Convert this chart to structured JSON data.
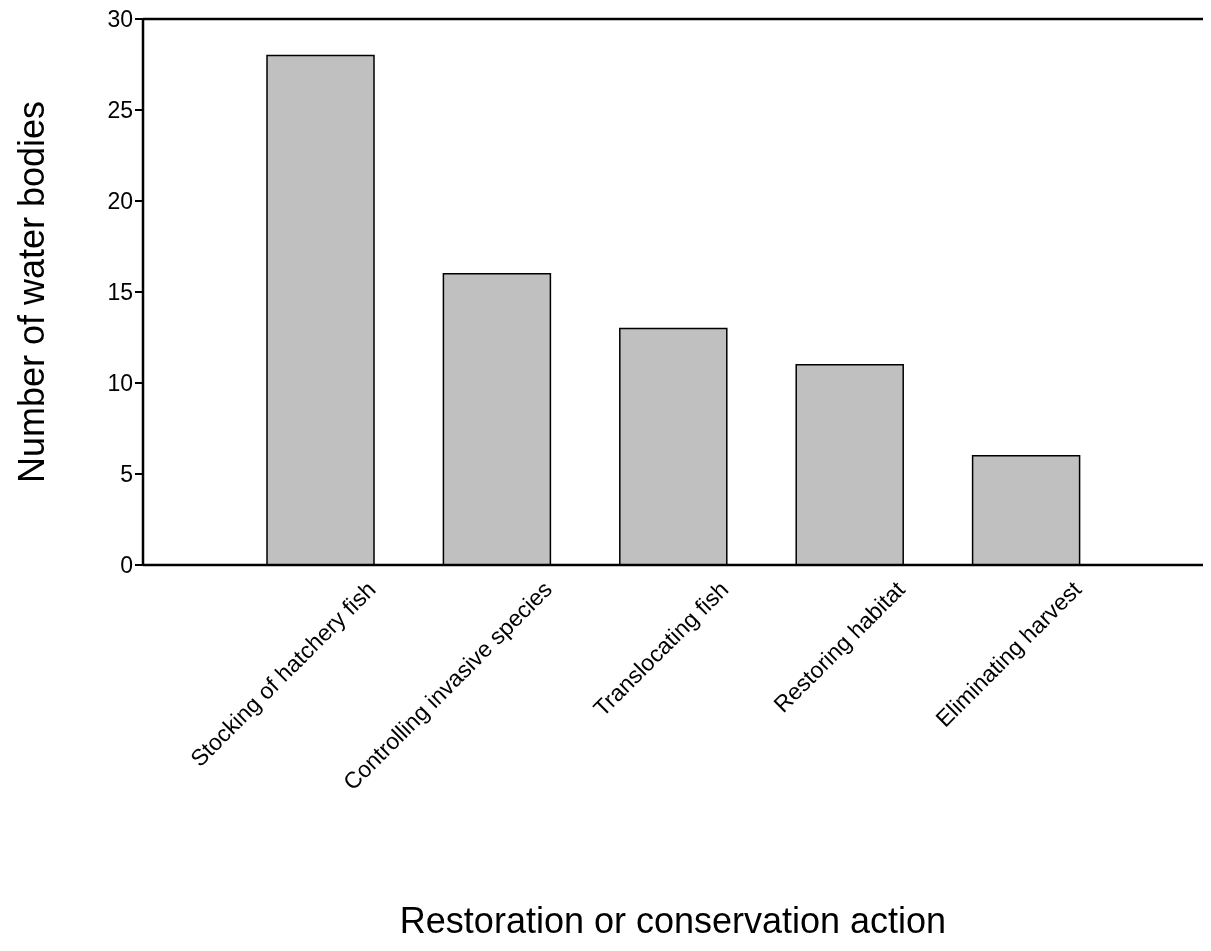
{
  "chart_data": {
    "type": "bar",
    "xlabel": "Restoration or conservation action",
    "ylabel": "Number of water bodies",
    "categories": [
      "Stocking of hatchery fish",
      "Controlling invasive species",
      "Translocating fish",
      "Restoring habitat",
      "Eliminating harvest"
    ],
    "values": [
      28,
      16,
      13,
      11,
      6
    ],
    "color": "#c0c0c0",
    "ylim": [
      0,
      30
    ],
    "yticks": [
      0,
      5,
      10,
      15,
      20,
      25,
      30
    ],
    "grid": false,
    "legend": false
  }
}
